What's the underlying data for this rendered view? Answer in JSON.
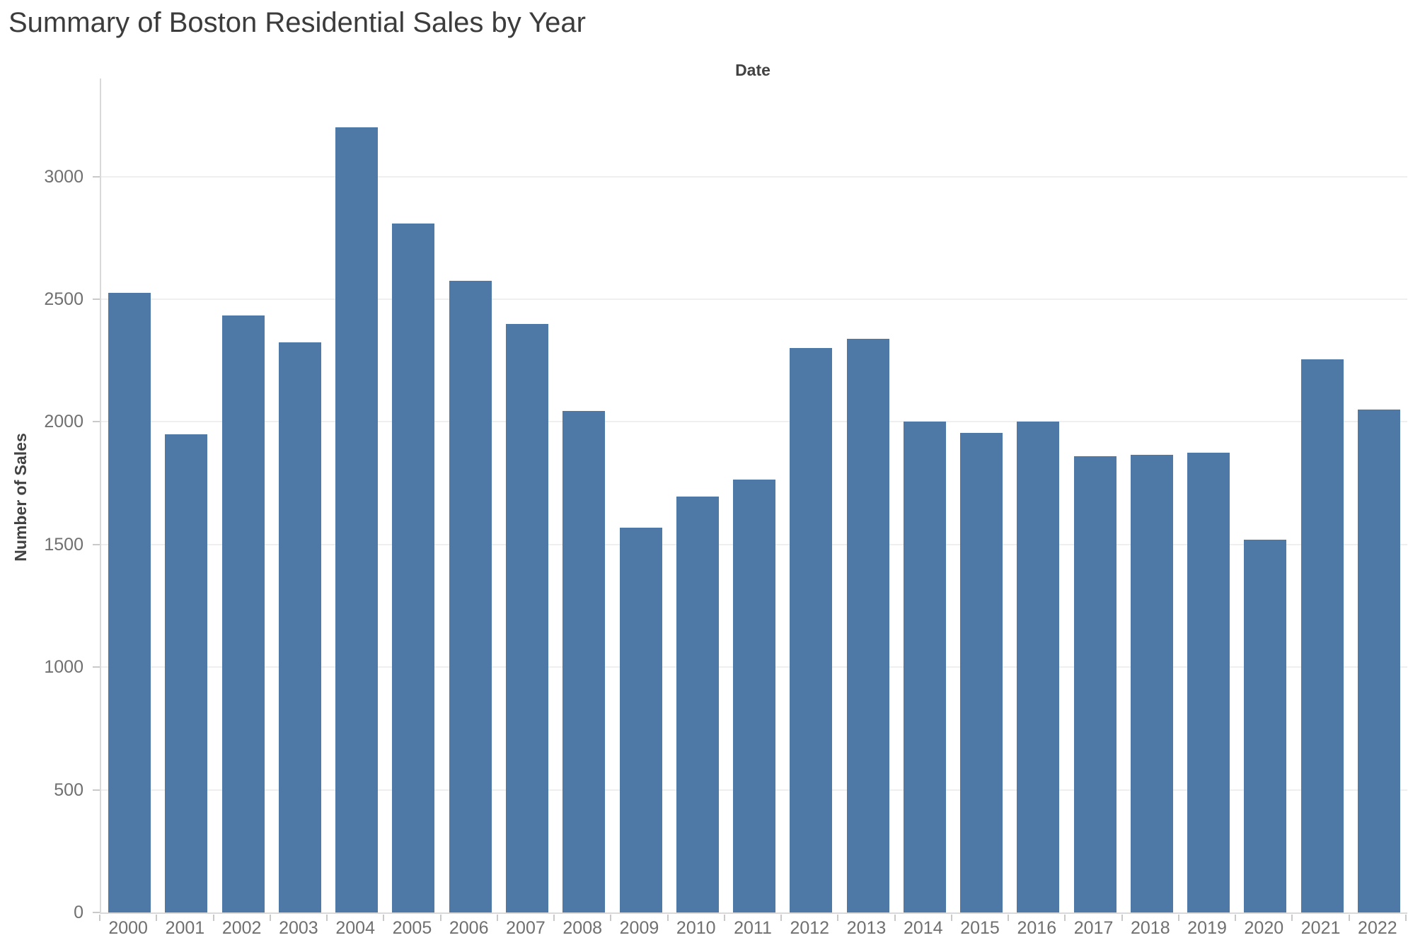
{
  "chart_data": {
    "type": "bar",
    "title": "Summary of Boston Residential Sales by Year",
    "x_axis_title": "Date",
    "xlabel": "Date",
    "ylabel": "Number of Sales",
    "categories": [
      "2000",
      "2001",
      "2002",
      "2003",
      "2004",
      "2005",
      "2006",
      "2007",
      "2008",
      "2009",
      "2010",
      "2011",
      "2012",
      "2013",
      "2014",
      "2015",
      "2016",
      "2017",
      "2018",
      "2019",
      "2020",
      "2021",
      "2022"
    ],
    "values": [
      2525,
      1950,
      2435,
      2325,
      3200,
      2810,
      2575,
      2400,
      2045,
      1570,
      1695,
      1765,
      2300,
      2340,
      2000,
      1955,
      2000,
      1860,
      1865,
      1875,
      1520,
      2255,
      2050
    ],
    "yticks": [
      0,
      500,
      1000,
      1500,
      2000,
      2500,
      3000
    ],
    "ylim": [
      0,
      3400
    ],
    "grid": "horizontal",
    "legend": "none",
    "bar_color": "#4e79a7",
    "gridline_color": "#efefef",
    "axis_line_color": "#d9d9d9",
    "tick_label_color": "#707070",
    "title_color": "#3c3c3c",
    "axis_title_color": "#424242"
  }
}
